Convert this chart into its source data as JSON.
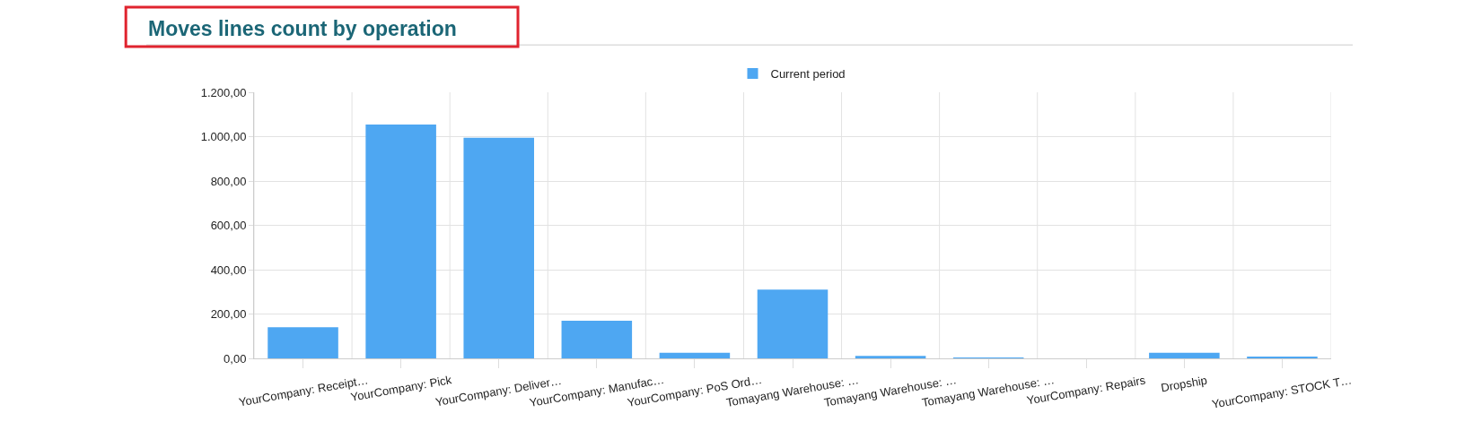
{
  "chart_data": {
    "type": "bar",
    "title": "Moves lines count by operation",
    "categories": [
      "YourCompany: Receipt…",
      "YourCompany: Pick",
      "YourCompany: Deliver…",
      "YourCompany: Manufac…",
      "YourCompany: PoS Ord…",
      "Tomayang Warehouse: …",
      "Tomayang Warehouse: …",
      "Tomayang Warehouse: …",
      "YourCompany: Repairs",
      "Dropship",
      "YourCompany: STOCK T…"
    ],
    "series": [
      {
        "name": "Current period",
        "color": "#4ea7f2",
        "values": [
          140,
          1055,
          995,
          170,
          25,
          310,
          11,
          2,
          0,
          25,
          5
        ]
      }
    ],
    "ylim": [
      0,
      1200
    ],
    "yticks": [
      {
        "value": 0,
        "label": "0,00"
      },
      {
        "value": 200,
        "label": "200,00"
      },
      {
        "value": 400,
        "label": "400,00"
      },
      {
        "value": 600,
        "label": "600,00"
      },
      {
        "value": 800,
        "label": "800,00"
      },
      {
        "value": 1000,
        "label": "1.000,00"
      },
      {
        "value": 1200,
        "label": "1.200,00"
      }
    ],
    "grid": true,
    "legend": "top"
  }
}
